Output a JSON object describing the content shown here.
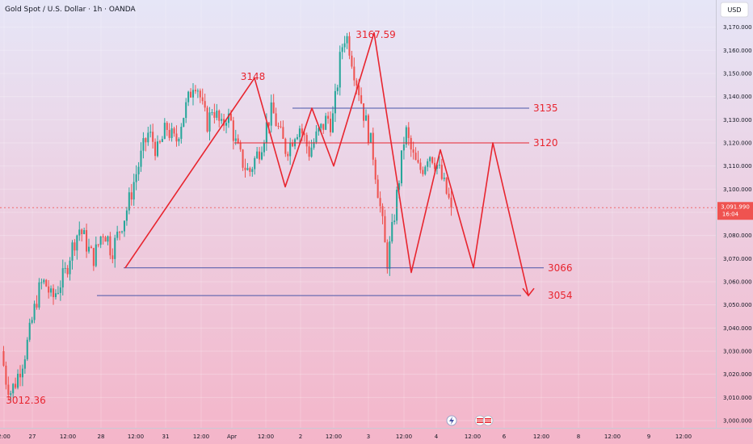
{
  "header": {
    "symbol_title": "Gold Spot / U.S. Dollar · 1h · OANDA",
    "currency_button": "USD"
  },
  "colors": {
    "bg_top": "#e6e6f7",
    "bg_bottom": "#f4b5c9",
    "up": "#26a69a",
    "down": "#ef5350",
    "annotation": "#e8252f",
    "level_line": "#4b56a8",
    "resistance_line": "#e8252f",
    "price_tag": "#ef5350"
  },
  "chart_data": {
    "type": "candlestick",
    "instrument": "Gold Spot / U.S. Dollar",
    "timeframe": "1h",
    "source": "OANDA",
    "ylim": [
      2996,
      3182
    ],
    "x_tick_labels": [
      "2:00",
      "27",
      "12:00",
      "28",
      "12:00",
      "31",
      "12:00",
      "Apr",
      "12:00",
      "2",
      "12:00",
      "3",
      "12:00",
      "4",
      "12:00",
      "6",
      "12:00",
      "8",
      "12:00",
      "9",
      "12:00"
    ],
    "y_ticks": [
      3000,
      3010,
      3020,
      3030,
      3040,
      3050,
      3060,
      3070,
      3080,
      3090,
      3100,
      3110,
      3120,
      3130,
      3140,
      3150,
      3160,
      3170
    ],
    "y_tick_labels": [
      "3,000.000",
      "3,010.000",
      "3,020.000",
      "3,030.000",
      "3,040.000",
      "3,050.000",
      "3,060.000",
      "3,070.000",
      "3,080.000",
      "3,090.000",
      "3,100.000",
      "3,110.000",
      "3,120.000",
      "3,130.000",
      "3,140.000",
      "3,150.000",
      "3,160.000",
      "3,170.000"
    ],
    "current_price": {
      "value": 3091.99,
      "label": "3,091.990",
      "countdown": "16:04"
    },
    "price_path": [
      3030,
      3018,
      3012.36,
      3016,
      3022,
      3028,
      3036,
      3046,
      3055,
      3060,
      3058,
      3052,
      3056,
      3060,
      3064,
      3072,
      3078,
      3083,
      3079,
      3074,
      3070,
      3075,
      3082,
      3080,
      3073,
      3078,
      3084,
      3089,
      3096,
      3104,
      3111,
      3118,
      3124,
      3121,
      3116,
      3121,
      3127,
      3123,
      3120,
      3128,
      3134,
      3140,
      3148,
      3143,
      3133,
      3128,
      3136,
      3131,
      3126,
      3132,
      3129,
      3120,
      3114,
      3110,
      3107,
      3112,
      3116,
      3122,
      3129,
      3134,
      3128,
      3122,
      3117,
      3120,
      3125,
      3127,
      3122,
      3116,
      3120,
      3124,
      3127,
      3131,
      3128,
      3142,
      3160,
      3167.59,
      3160,
      3150,
      3142,
      3132,
      3124,
      3115,
      3100,
      3085,
      3068,
      3080,
      3095,
      3110,
      3126,
      3118,
      3112,
      3108,
      3110,
      3116,
      3114,
      3110,
      3104,
      3098,
      3091.99
    ],
    "annotations": [
      {
        "text": "3167.59",
        "price": 3167.59
      },
      {
        "text": "3148",
        "price": 3148
      },
      {
        "text": "3012.36",
        "price": 3012.36
      }
    ],
    "levels": [
      {
        "label": "3135",
        "price": 3135
      },
      {
        "label": "3120",
        "price": 3120
      },
      {
        "label": "3066",
        "price": 3066
      },
      {
        "label": "3054",
        "price": 3054
      }
    ],
    "pattern_path": [
      3066,
      3148,
      3101,
      3135,
      3110,
      3167.59,
      3064,
      3117,
      3066,
      3120,
      3054
    ],
    "forecast_target": 3054
  }
}
